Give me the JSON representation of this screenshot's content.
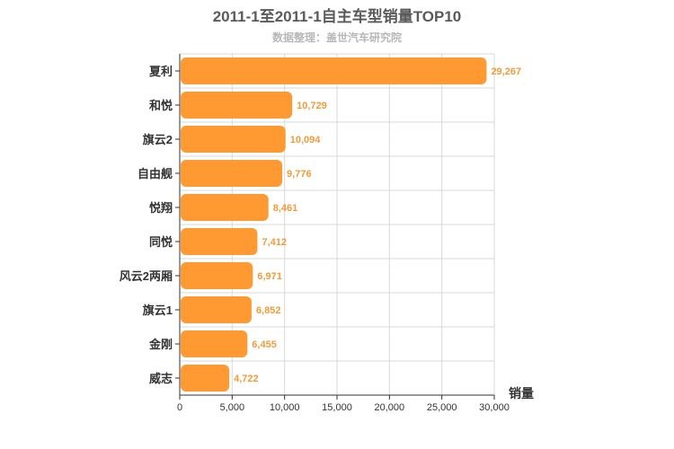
{
  "title": "2011-1至2011-1自主车型销量TOP10",
  "subtitle": "数据整理：盖世汽车研究院",
  "colors": {
    "bar": "#ff9a33",
    "value_label": "#f29b38",
    "grid": "#d9d9d9",
    "axis": "#333333"
  },
  "chart_data": {
    "type": "bar",
    "orientation": "horizontal",
    "title": "2011-1至2011-1自主车型销量TOP10",
    "subtitle": "数据整理：盖世汽车研究院",
    "xlabel": "销量",
    "ylabel": "",
    "categories": [
      "夏利",
      "和悦",
      "旗云2",
      "自由舰",
      "悦翔",
      "同悦",
      "风云2两厢",
      "旗云1",
      "金刚",
      "威志"
    ],
    "values": [
      29267,
      10729,
      10094,
      9776,
      8461,
      7412,
      6971,
      6852,
      6455,
      4722
    ],
    "value_labels": [
      "29,267",
      "10,729",
      "10,094",
      "9,776",
      "8,461",
      "7,412",
      "6,971",
      "6,852",
      "6,455",
      "4,722"
    ],
    "xlim": [
      0,
      30000
    ],
    "xticks": [
      0,
      5000,
      10000,
      15000,
      20000,
      25000,
      30000
    ],
    "xtick_labels": [
      "0",
      "5,000",
      "10,000",
      "15,000",
      "20,000",
      "25,000",
      "30,000"
    ],
    "grid": true,
    "legend": "none"
  }
}
